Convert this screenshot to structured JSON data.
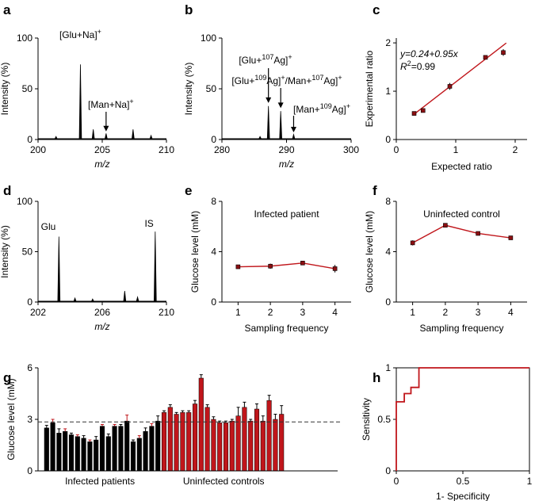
{
  "colors": {
    "red": "#c0161b",
    "dark_red": "#8b0f12",
    "black": "#000000",
    "dashed": "#333333"
  },
  "chart_data": [
    {
      "id": "a",
      "panel_label": "a",
      "type": "line",
      "title": "",
      "xlabel": "m/z",
      "ylabel": "Intensity (%)",
      "xlim": [
        200,
        210
      ],
      "ylim": [
        0,
        100
      ],
      "xticks": [
        "200",
        "205",
        "210"
      ],
      "yticks": [
        "0",
        "50",
        "100"
      ],
      "peaks": [
        [
          201.4,
          3
        ],
        [
          203.3,
          74
        ],
        [
          204.3,
          10
        ],
        [
          205.3,
          6
        ],
        [
          207.4,
          10
        ],
        [
          208.8,
          4
        ]
      ],
      "annotations": [
        {
          "x": 203.3,
          "y": 74,
          "label": "[Glu+Na]",
          "sup": "+",
          "arrow": false
        },
        {
          "x": 205.3,
          "y": 6,
          "label": "[Man+Na]",
          "sup": "+",
          "arrow": true
        }
      ]
    },
    {
      "id": "b",
      "panel_label": "b",
      "type": "line",
      "title": "",
      "xlabel": "m/z",
      "ylabel": "Intensity (%)",
      "xlim": [
        280,
        300
      ],
      "ylim": [
        0,
        100
      ],
      "xticks": [
        "280",
        "290",
        "300"
      ],
      "yticks": [
        "0",
        "50",
        "100"
      ],
      "peaks": [
        [
          285.9,
          3
        ],
        [
          287.2,
          33
        ],
        [
          289.1,
          28
        ],
        [
          291.1,
          5
        ]
      ],
      "annotations": [
        {
          "x": 287.2,
          "y": 33,
          "label": "[Glu+107Ag]+",
          "arrow": true
        },
        {
          "x": 289.1,
          "y": 28,
          "label": "[Glu+109Ag]+/Man+107Ag]+",
          "arrow": true
        },
        {
          "x": 291.1,
          "y": 5,
          "label": "[Man+109Ag]+",
          "arrow": true
        }
      ]
    },
    {
      "id": "c",
      "panel_label": "c",
      "type": "scatter",
      "title": "",
      "xlabel": "Expected ratio",
      "ylabel": "Experimental ratio",
      "xlim": [
        0,
        2.2
      ],
      "ylim": [
        0,
        2.1
      ],
      "xticks": [
        "0",
        "1",
        "2"
      ],
      "yticks": [
        "0",
        "1",
        "2"
      ],
      "x": [
        0.3,
        0.45,
        0.9,
        1.5,
        1.8
      ],
      "y": [
        0.54,
        0.6,
        1.1,
        1.7,
        1.8
      ],
      "err": [
        0.03,
        0.03,
        0.07,
        0.03,
        0.07
      ],
      "fit": {
        "slope": 0.95,
        "intercept": 0.24,
        "x_range": [
          0.3,
          1.8
        ]
      },
      "equation": "y=0.24+0.95x",
      "r2_prefix": "R",
      "r2_sup": "2",
      "r2_value": "=0.99"
    },
    {
      "id": "d",
      "panel_label": "d",
      "type": "line",
      "title": "",
      "xlabel": "m/z",
      "ylabel": "Intensity (%)",
      "xlim": [
        202,
        210
      ],
      "ylim": [
        0,
        100
      ],
      "xticks": [
        "202",
        "206",
        "210"
      ],
      "yticks": [
        "0",
        "50",
        "100"
      ],
      "peaks": [
        [
          203.3,
          65
        ],
        [
          204.3,
          4
        ],
        [
          205.4,
          3
        ],
        [
          207.4,
          11
        ],
        [
          208.2,
          5
        ],
        [
          209.3,
          70
        ]
      ],
      "annotations": [
        {
          "x": 203.3,
          "y": 65,
          "label": "Glu"
        },
        {
          "x": 209.3,
          "y": 70,
          "label": "IS"
        }
      ]
    },
    {
      "id": "e",
      "panel_label": "e",
      "type": "line",
      "title": "Infected patient",
      "xlabel": "Sampling frequency",
      "ylabel": "Glucose level (mM)",
      "xlim": [
        0.5,
        4.5
      ],
      "ylim": [
        0,
        8
      ],
      "xticks": [
        "1",
        "2",
        "3",
        "4"
      ],
      "yticks": [
        "0",
        "4",
        "8"
      ],
      "x": [
        1,
        2,
        3,
        4
      ],
      "y": [
        2.8,
        2.85,
        3.1,
        2.65
      ],
      "err": [
        0.1,
        0.2,
        0.1,
        0.3
      ]
    },
    {
      "id": "f",
      "panel_label": "f",
      "type": "line",
      "title": "Uninfected control",
      "xlabel": "Sampling frequency",
      "ylabel": "Glucose level (mM)",
      "xlim": [
        0.5,
        4.5
      ],
      "ylim": [
        0,
        8
      ],
      "xticks": [
        "1",
        "2",
        "3",
        "4"
      ],
      "yticks": [
        "0",
        "4",
        "8"
      ],
      "x": [
        1,
        2,
        3,
        4
      ],
      "y": [
        4.7,
        6.1,
        5.45,
        5.1
      ],
      "err": [
        0.2,
        0.1,
        0.15,
        0.15
      ]
    },
    {
      "id": "g",
      "panel_label": "g",
      "type": "bar",
      "title": "",
      "xlabel": "",
      "ylabel": "Glucose level (mM)",
      "ylim": [
        0,
        6
      ],
      "yticks": [
        "0",
        "3",
        "6"
      ],
      "threshold": 2.85,
      "series": [
        {
          "name": "Infected patients",
          "values": [
            2.5,
            2.8,
            2.2,
            2.3,
            2.1,
            2.0,
            1.9,
            1.7,
            1.8,
            2.6,
            2.0,
            2.6,
            2.6,
            2.9,
            1.7,
            1.9,
            2.3,
            2.6,
            2.9
          ],
          "errors": [
            0.15,
            0.2,
            0.25,
            0.15,
            0.1,
            0.1,
            0.15,
            0.1,
            0.2,
            0.1,
            0.15,
            0.1,
            0.1,
            0.35,
            0.1,
            0.15,
            0.2,
            0.15,
            0.3
          ]
        },
        {
          "name": "Uninfected controls",
          "values": [
            3.4,
            3.7,
            3.3,
            3.4,
            3.4,
            3.9,
            5.4,
            3.7,
            3.0,
            2.8,
            2.8,
            2.9,
            3.2,
            3.7,
            2.9,
            3.6,
            2.9,
            4.1,
            3.0,
            3.3
          ],
          "errors": [
            0.1,
            0.15,
            0.1,
            0.1,
            0.1,
            0.2,
            0.2,
            0.15,
            0.15,
            0.1,
            0.1,
            0.1,
            0.5,
            0.3,
            0.1,
            0.3,
            0.3,
            0.3,
            0.3,
            0.5
          ]
        }
      ]
    },
    {
      "id": "h",
      "panel_label": "h",
      "type": "line",
      "title": "",
      "xlabel": "1- Specificity",
      "ylabel": "Sensitivity",
      "xlim": [
        0,
        1
      ],
      "ylim": [
        0,
        1
      ],
      "xticks": [
        "0",
        "0.5",
        "1"
      ],
      "yticks": [
        "0",
        "0.5",
        "1"
      ],
      "x": [
        0,
        0,
        0.06,
        0.06,
        0.11,
        0.11,
        0.17,
        0.17,
        1
      ],
      "y": [
        0,
        0.67,
        0.67,
        0.75,
        0.75,
        0.81,
        0.81,
        1,
        1
      ]
    }
  ]
}
